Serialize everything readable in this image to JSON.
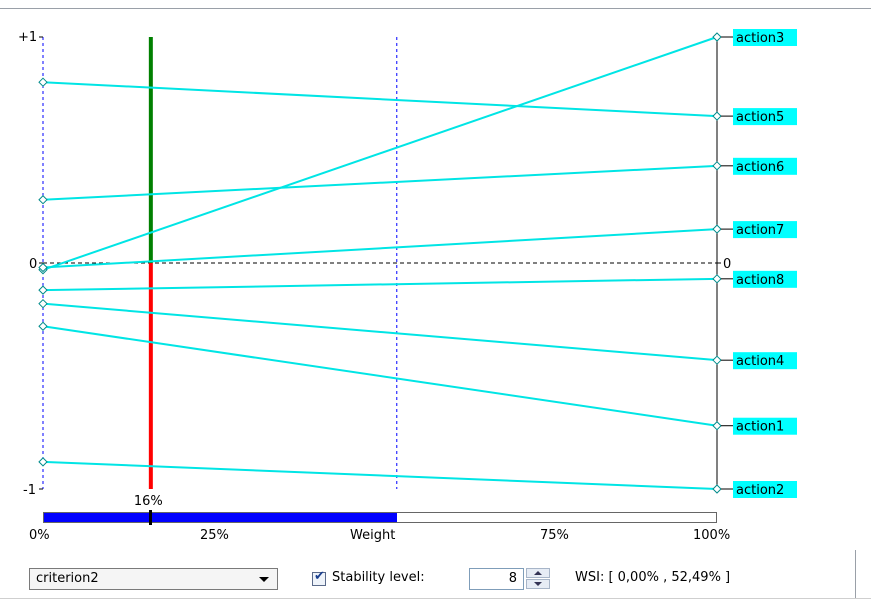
{
  "chart_data": {
    "type": "line",
    "x_range": [
      0,
      100
    ],
    "y_range": [
      -1,
      1
    ],
    "y_tick_labels": [
      "+1",
      "0",
      "-1"
    ],
    "right_zero_label": "0",
    "current_weight_percent": 16,
    "current_weight_label": "16%",
    "stability_interval_percent": [
      0.0,
      52.49
    ],
    "series": [
      {
        "name": "action3",
        "values": [
          -0.03,
          1.0
        ]
      },
      {
        "name": "action5",
        "values": [
          0.8,
          0.65
        ]
      },
      {
        "name": "action6",
        "values": [
          0.28,
          0.43
        ]
      },
      {
        "name": "action7",
        "values": [
          -0.02,
          0.15
        ]
      },
      {
        "name": "action8",
        "values": [
          -0.12,
          -0.07
        ]
      },
      {
        "name": "action4",
        "values": [
          -0.18,
          -0.43
        ]
      },
      {
        "name": "action1",
        "values": [
          -0.28,
          -0.72
        ]
      },
      {
        "name": "action2",
        "values": [
          -0.88,
          -1.0
        ]
      }
    ],
    "colors": {
      "lines": "#00e5e5",
      "label_bg": "#00ffff",
      "weight_above": "#008000",
      "weight_below": "#ff0000",
      "guide": "#0000ff",
      "weight_fill": "#0000ff"
    }
  },
  "weight_axis": {
    "ticks": [
      "0%",
      "25%",
      "Weight",
      "75%",
      "100%"
    ]
  },
  "controls": {
    "criterion_selected": "criterion2",
    "stability_checked": true,
    "stability_label": "Stability level:",
    "stability_value": "8",
    "wsi_text": "WSI: [ 0,00% , 52,49% ]"
  }
}
